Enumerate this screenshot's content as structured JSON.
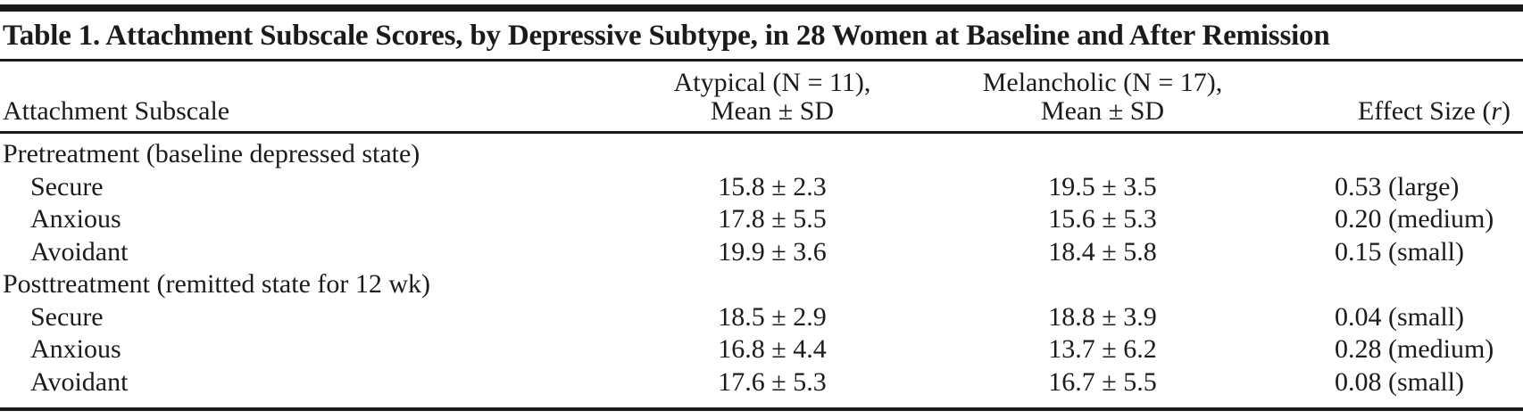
{
  "colors": {
    "text": "#1b1b1b",
    "rule": "#1a1a1a",
    "background": "#ffffff"
  },
  "table": {
    "title": "Table 1. Attachment Subscale Scores, by Depressive Subtype, in 28 Women at Baseline and After Remission",
    "header": {
      "col1": "Attachment Subscale",
      "col2_line1": "Atypical (N = 11),",
      "col2_line2": "Mean ± SD",
      "col3_line1": "Melancholic (N = 17),",
      "col3_line2": "Mean ± SD",
      "col4_prefix": "Effect Size (",
      "col4_italic": "r",
      "col4_suffix": ")"
    },
    "sections": [
      {
        "label": "Pretreatment (baseline depressed state)",
        "rows": [
          {
            "label": "Secure",
            "atypical": "15.8 ± 2.3",
            "melancholic": "19.5 ± 3.5",
            "effect": "0.53 (large)"
          },
          {
            "label": "Anxious",
            "atypical": "17.8 ± 5.5",
            "melancholic": "15.6 ± 5.3",
            "effect": "0.20 (medium)"
          },
          {
            "label": "Avoidant",
            "atypical": "19.9 ± 3.6",
            "melancholic": "18.4 ± 5.8",
            "effect": "0.15 (small)"
          }
        ]
      },
      {
        "label": "Posttreatment (remitted state for 12 wk)",
        "rows": [
          {
            "label": "Secure",
            "atypical": "18.5 ± 2.9",
            "melancholic": "18.8 ± 3.9",
            "effect": "0.04 (small)"
          },
          {
            "label": "Anxious",
            "atypical": "16.8 ± 4.4",
            "melancholic": "13.7 ± 6.2",
            "effect": "0.28 (medium)"
          },
          {
            "label": "Avoidant",
            "atypical": "17.6 ± 5.3",
            "melancholic": "16.7 ± 5.5",
            "effect": "0.08 (small)"
          }
        ]
      }
    ]
  }
}
